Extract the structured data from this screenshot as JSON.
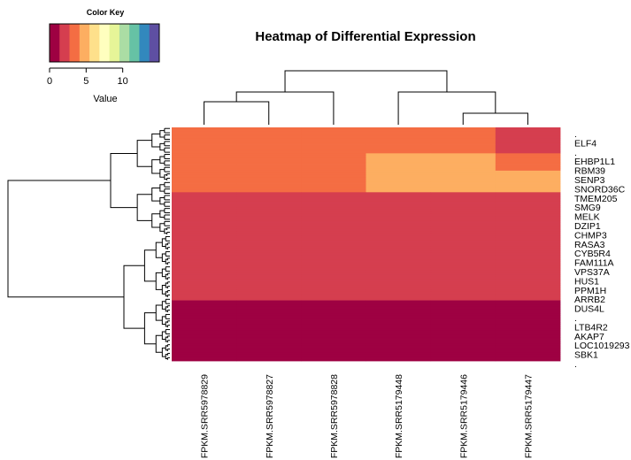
{
  "chart_data": {
    "type": "heatmap",
    "title": "Heatmap of Differential Expression",
    "columns": [
      "FPKM.SRR5978829",
      "FPKM.SRR5978827",
      "FPKM.SRR5978828",
      "FPKM.SRR5179448",
      "FPKM.SRR5179446",
      "FPKM.SRR5179447"
    ],
    "row_labels": [
      ".",
      "ELF4",
      ".",
      "EHBP1L1",
      "RBM39",
      "SENP3",
      "SNORD36C",
      "TMEM205",
      "SMG9",
      "MELK",
      "DZIP1",
      "CHMP3",
      "RASA3",
      "CYB5R4",
      "FAM111A",
      "VPS37A",
      "HUS1",
      "PPM1H",
      "ARRB2",
      "DUS4L",
      ".",
      "LTB4R2",
      "AKAP7",
      "LOC1019293",
      "SBK1",
      "."
    ],
    "color_key": {
      "title": "Color Key",
      "xlabel": "Value",
      "ticks": [
        0,
        5,
        10
      ],
      "range": [
        0,
        15
      ],
      "colors": [
        "#9E0142",
        "#D53E4F",
        "#F46D43",
        "#FDAE61",
        "#FEE08B",
        "#FFFFBF",
        "#E6F598",
        "#ABDDA4",
        "#66C2A5",
        "#3288BD",
        "#5E4FA2"
      ]
    },
    "column_dendrogram": [
      [
        0,
        1
      ],
      [
        2,
        -1
      ],
      [
        4,
        5
      ],
      [
        3,
        -3
      ],
      [
        -2,
        -4
      ]
    ],
    "row_blocks": [
      {
        "rows": 12,
        "values": [
          3.5,
          3.5,
          3.2,
          3.0,
          2.9,
          2.6
        ]
      },
      {
        "rows": 8,
        "values": [
          3.7,
          3.6,
          3.5,
          4.5,
          4.4,
          4.0
        ]
      },
      {
        "rows": 10,
        "values": [
          3.8,
          3.8,
          3.7,
          4.8,
          4.7,
          4.6
        ]
      },
      {
        "rows": 20,
        "values": [
          2.6,
          2.6,
          2.5,
          2.6,
          2.5,
          2.4
        ]
      },
      {
        "rows": 18,
        "values": [
          1.6,
          1.7,
          1.6,
          2.5,
          2.5,
          2.5
        ]
      },
      {
        "rows": 12,
        "values": [
          1.5,
          1.5,
          1.4,
          1.5,
          1.4,
          1.6
        ]
      },
      {
        "rows": 28,
        "values": [
          0.6,
          0.6,
          0.7,
          0.5,
          0.5,
          0.6
        ]
      }
    ]
  }
}
